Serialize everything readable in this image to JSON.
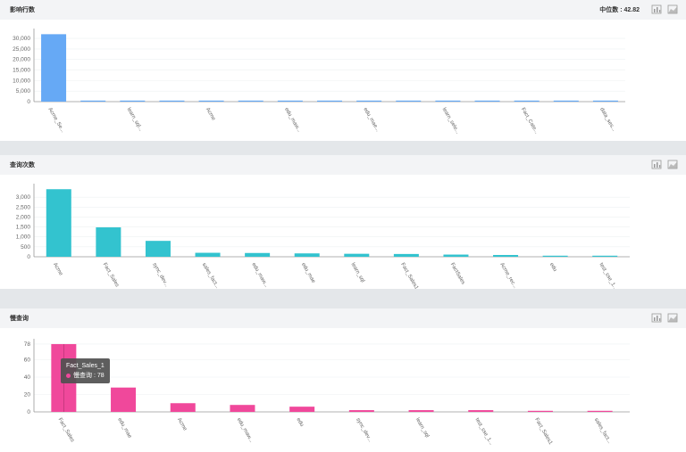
{
  "panels": [
    {
      "title": "影响行数",
      "median_label": "中位数 : 42.82",
      "icons": [
        "bar-chart-icon",
        "area-chart-icon"
      ]
    },
    {
      "title": "查询次数",
      "icons": [
        "bar-chart-icon",
        "area-chart-icon"
      ]
    },
    {
      "title": "慢查询",
      "icons": [
        "bar-chart-icon",
        "area-chart-icon"
      ]
    }
  ],
  "tooltip": {
    "title": "Fact_Sales_1",
    "series_label": "慢查询 : 78"
  },
  "chart_data": [
    {
      "type": "bar",
      "title": "影响行数",
      "color": "#66a9f5",
      "categories": [
        "Acme_Se...",
        "",
        "learn_sql...",
        "",
        "Acme",
        "",
        "edu_maw...",
        "",
        "edu_mae...",
        "",
        "learn_sele...",
        "",
        "Fact_Cate...",
        "",
        "data_ses..."
      ],
      "values": [
        32000,
        180,
        120,
        100,
        90,
        80,
        70,
        60,
        55,
        50,
        45,
        40,
        35,
        30,
        25
      ],
      "yticks": [
        0,
        5000,
        10000,
        15000,
        20000,
        25000,
        30000
      ],
      "ytick_labels": [
        "0",
        "5,000",
        "10,000",
        "15,000",
        "20,000",
        "25,000",
        "30,000"
      ],
      "ylim": [
        0,
        33000
      ]
    },
    {
      "type": "bar",
      "title": "查询次数",
      "color": "#33c3cf",
      "categories": [
        "Acme",
        "Fact_Sales",
        "sync_dev...",
        "sales_fact...",
        "edu_maw...",
        "edu_mae",
        "learn_sql",
        "Fact_Sales1",
        "FactSales",
        "Acme_rec...",
        "edu",
        "test_sse_1..."
      ],
      "values": [
        3400,
        1480,
        800,
        200,
        190,
        170,
        150,
        140,
        110,
        90,
        50,
        40
      ],
      "yticks": [
        0,
        500,
        1000,
        1500,
        2000,
        2500,
        3000
      ],
      "ytick_labels": [
        "0",
        "500",
        "1,000",
        "1,500",
        "2,000",
        "2,500",
        "3,000"
      ],
      "ylim": [
        0,
        3500
      ]
    },
    {
      "type": "bar",
      "title": "慢查询",
      "color": "#f0489b",
      "categories": [
        "Fact_Sales",
        "edu_mae",
        "Acme",
        "edu_maw...",
        "edu",
        "sync_dev...",
        "learn_sql",
        "test_sse_1...",
        "Fact_Sales1",
        "sales_fact..."
      ],
      "values": [
        78,
        28,
        10,
        8,
        6,
        2,
        2,
        2,
        1,
        1
      ],
      "yticks": [
        0,
        20,
        40,
        60,
        78
      ],
      "ytick_labels": [
        "0",
        "20",
        "40",
        "60",
        "78"
      ],
      "ylim": [
        0,
        80
      ]
    }
  ]
}
